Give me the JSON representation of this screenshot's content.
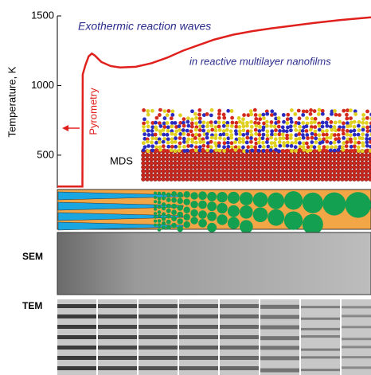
{
  "chart_data": {
    "type": "line",
    "annotations": [
      "Exothermic reaction waves",
      "in reactive multilayer nanofilms",
      "Pyrometry",
      "MDS"
    ],
    "y_label": "Temperature, K",
    "ylim": [
      265,
      1500
    ],
    "yticks": [
      500,
      1000,
      1500
    ],
    "xlim": [
      0,
      100
    ],
    "series": [
      {
        "color": "#e0201c",
        "x": [
          0,
          8,
          8.1,
          9,
          10,
          11,
          12,
          14,
          17,
          20,
          25,
          30,
          35,
          40,
          45,
          50,
          56,
          62,
          68,
          75,
          82,
          90,
          100
        ],
        "values": [
          275,
          275,
          1080,
          1150,
          1210,
          1230,
          1215,
          1170,
          1140,
          1130,
          1135,
          1160,
          1200,
          1250,
          1290,
          1330,
          1365,
          1390,
          1410,
          1430,
          1450,
          1470,
          1490
        ]
      }
    ]
  },
  "panels": {
    "sem_label": "SEM",
    "tem_label": "TEM"
  }
}
